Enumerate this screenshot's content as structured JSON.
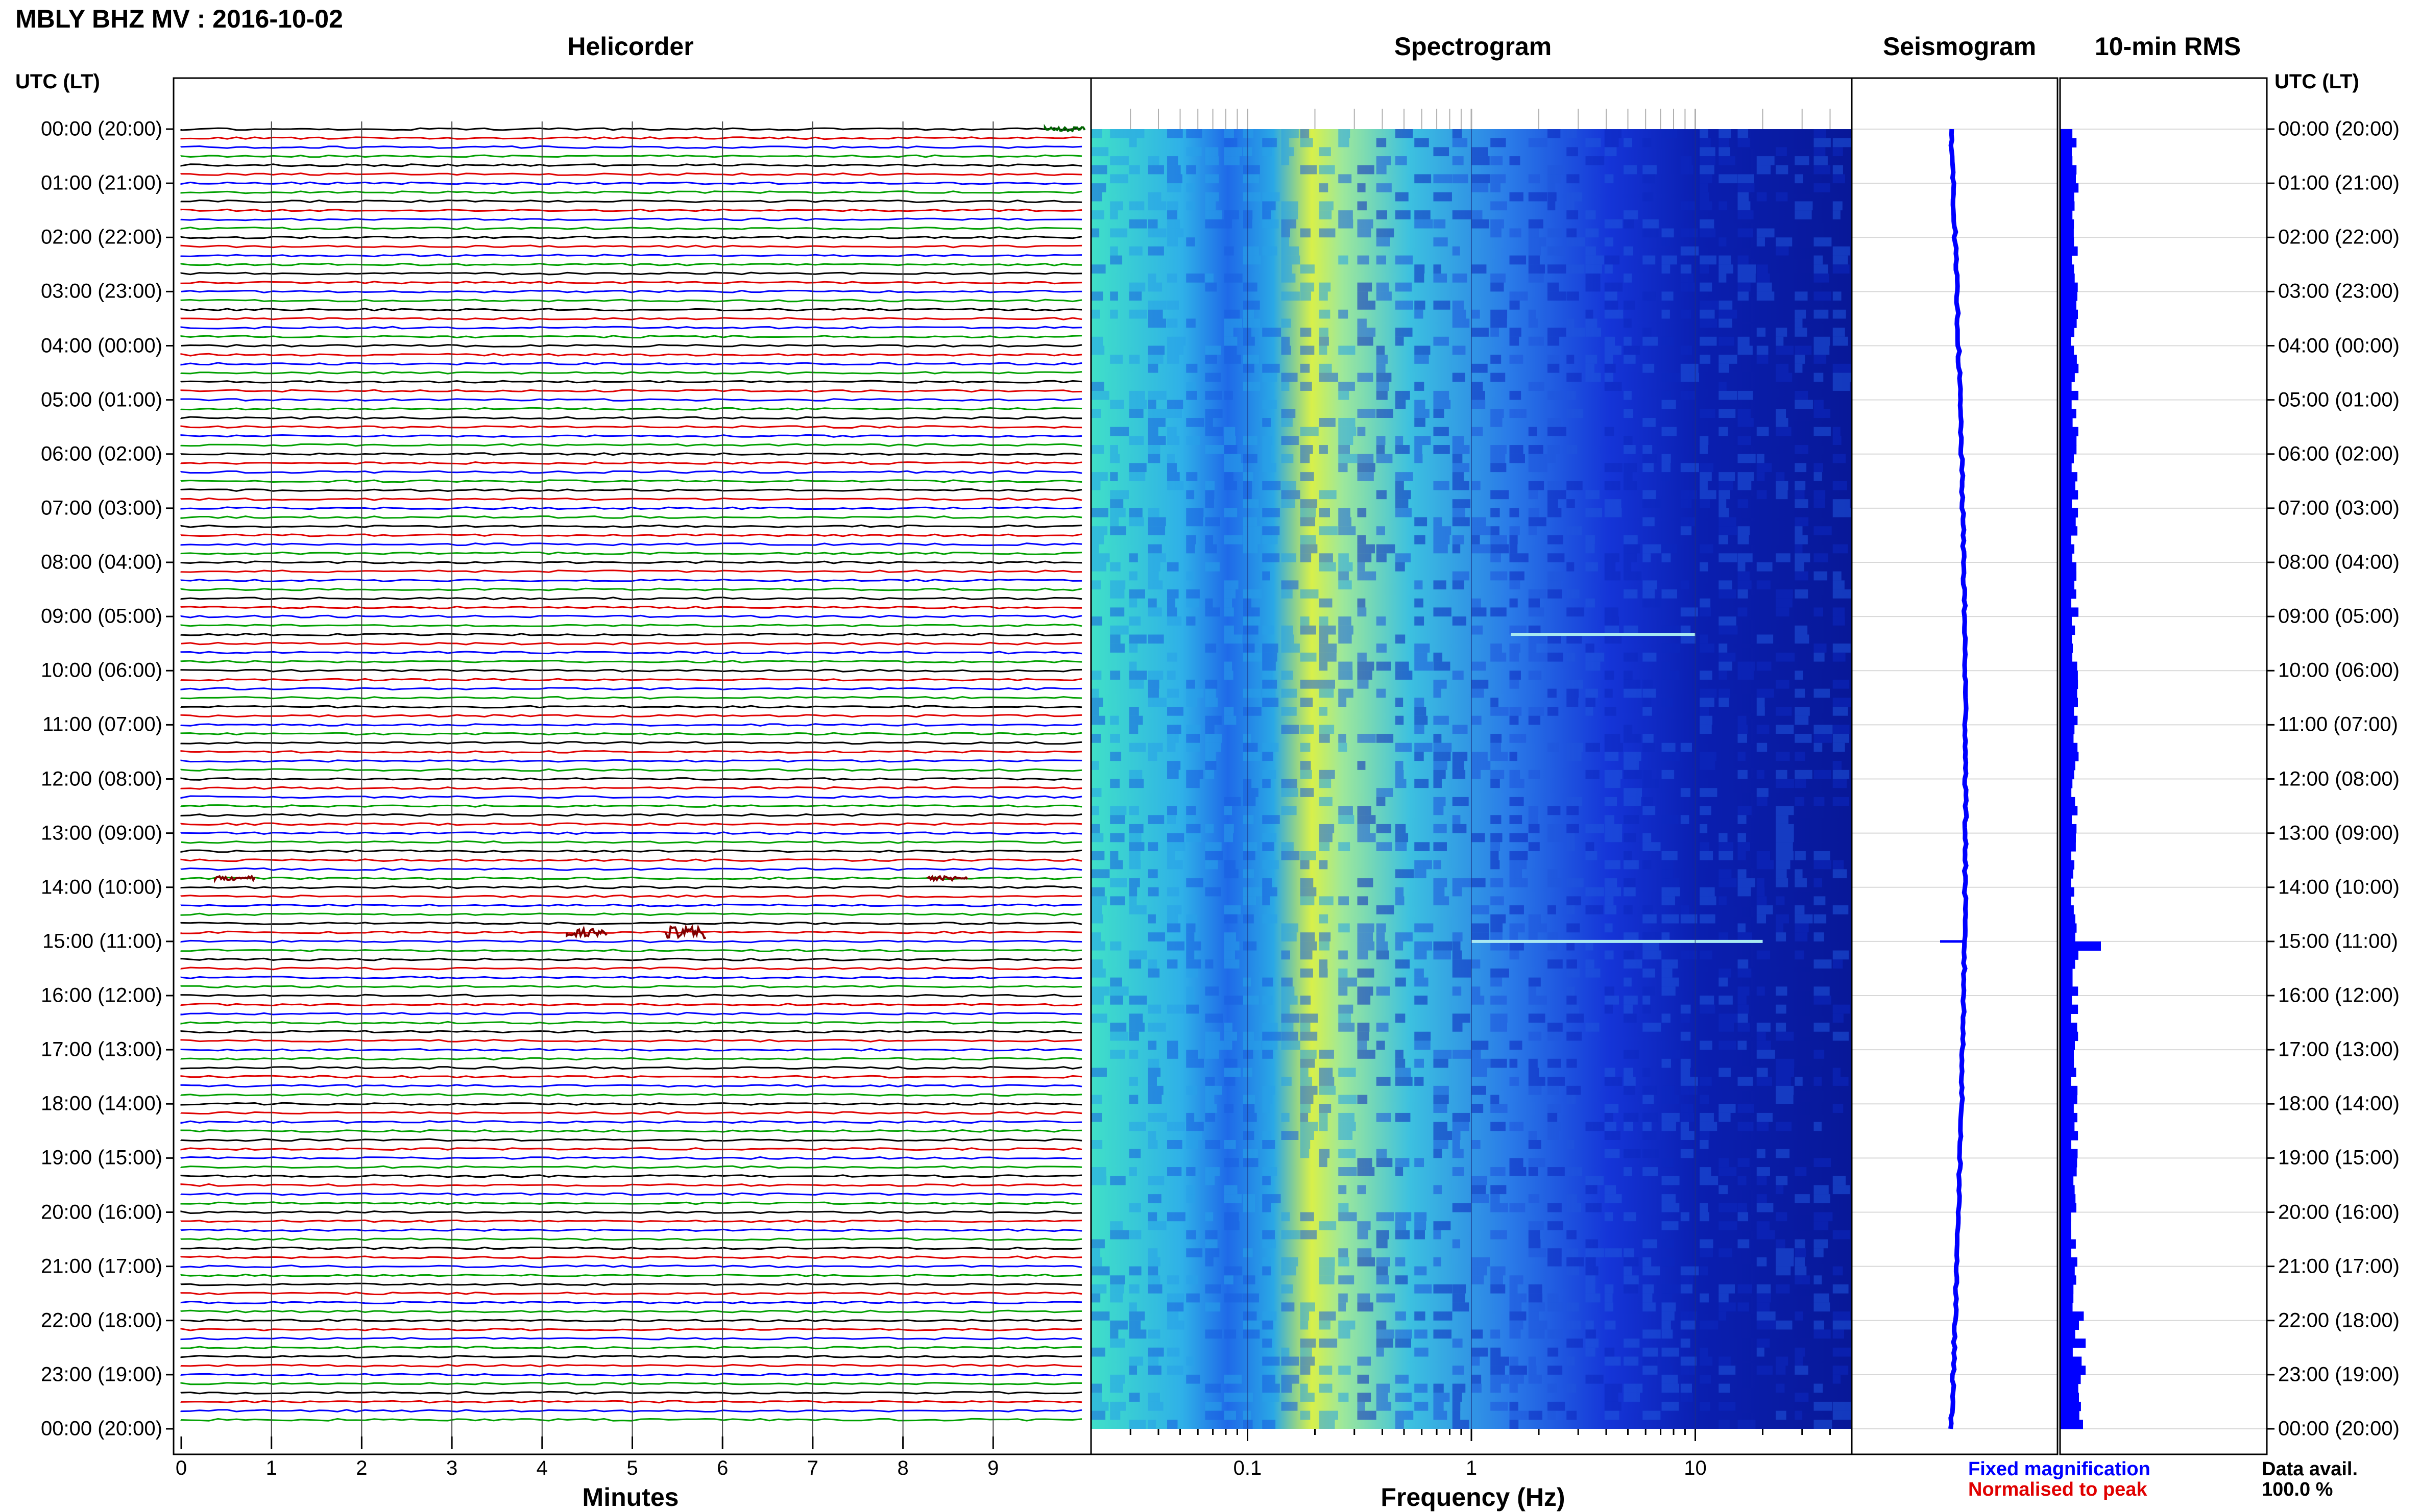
{
  "title": "MBLY BHZ MV : 2016-10-02",
  "panels": {
    "helicorder": "Helicorder",
    "spectrogram": "Spectrogram",
    "seismogram": "Seismogram",
    "rms": "10-min RMS"
  },
  "time_axis_header": "UTC (LT)",
  "time_labels": [
    "00:00 (20:00)",
    "01:00 (21:00)",
    "02:00 (22:00)",
    "03:00 (23:00)",
    "04:00 (00:00)",
    "05:00 (01:00)",
    "06:00 (02:00)",
    "07:00 (03:00)",
    "08:00 (04:00)",
    "09:00 (05:00)",
    "10:00 (06:00)",
    "11:00 (07:00)",
    "12:00 (08:00)",
    "13:00 (09:00)",
    "14:00 (10:00)",
    "15:00 (11:00)",
    "16:00 (12:00)",
    "17:00 (13:00)",
    "18:00 (14:00)",
    "19:00 (15:00)",
    "20:00 (16:00)",
    "21:00 (17:00)",
    "22:00 (18:00)",
    "23:00 (19:00)",
    "00:00 (20:00)"
  ],
  "minutes_ticks": [
    "0",
    "1",
    "2",
    "3",
    "4",
    "5",
    "6",
    "7",
    "8",
    "9"
  ],
  "minutes_label": "Minutes",
  "freq_ticks": [
    "0.1",
    "1",
    "10"
  ],
  "freq_label": "Frequency (Hz)",
  "legend": {
    "fixed": "Fixed magnification",
    "normalised": "Normalised to peak",
    "colors": {
      "fixed": "#0000ff",
      "normalised": "#e00000"
    }
  },
  "data_availability": {
    "label": "Data avail.",
    "value": "100.0 %"
  },
  "chart_data": {
    "type": "heatmap",
    "station": "MBLY BHZ MV",
    "date": "2016-10-02",
    "helicorder": {
      "x_range_minutes": [
        0,
        10
      ],
      "y_range_hours": [
        0,
        24
      ],
      "line_interval_minutes": 10,
      "trace_colors": [
        "#000000",
        "#e00000",
        "#0000ff",
        "#00a000"
      ],
      "events": [
        {
          "hour": 0.0833,
          "minute": 9.8,
          "amplitude": 3,
          "color": "#006400"
        },
        {
          "hour": 13.83,
          "minute": 0.6,
          "amplitude": 3,
          "color": "#800000"
        },
        {
          "hour": 13.83,
          "minute": 8.5,
          "amplitude": 3,
          "color": "#800000"
        },
        {
          "hour": 14.83,
          "minute": 4.5,
          "amplitude": 6,
          "color": "#800000"
        },
        {
          "hour": 14.83,
          "minute": 5.6,
          "amplitude": 9,
          "color": "#800000"
        }
      ]
    },
    "spectrogram": {
      "frequency_range_hz": [
        0.02,
        50
      ],
      "frequency_scale": "log",
      "microseism_peak_hz": 0.2,
      "notable_lines": [
        {
          "hour": 9.33,
          "freq_range_hz": [
            1.5,
            10
          ]
        },
        {
          "hour": 15.0,
          "freq_range_hz": [
            1,
            20
          ]
        }
      ]
    },
    "seismogram": {
      "shape": "near-constant thin trace with slight drift and a spike near 15:00",
      "spike_hour": 15.0,
      "color": "#0000ff"
    },
    "rms_10min": {
      "color": "#0000ff",
      "baseline": 0.35,
      "peak_hour": 15.0,
      "peak_value": 1.0
    }
  }
}
